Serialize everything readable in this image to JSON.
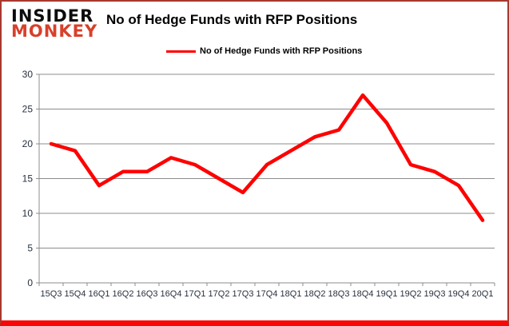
{
  "logo": {
    "line1": "INSIDER",
    "line2": "MONKEY"
  },
  "header": {
    "title": "No of Hedge Funds with RFP Positions"
  },
  "legend": {
    "label": "No of Hedge Funds with RFP Positions"
  },
  "colors": {
    "line": "#fe0000",
    "grid": "#8c8c8c",
    "axis": "#8c8c8c",
    "tick_text": "#27303f",
    "logo_red": "#d8402a",
    "frame_border": "#a8382e",
    "frame_bottom": "#f90606"
  },
  "chart_data": {
    "type": "line",
    "title": "No of Hedge Funds with RFP Positions",
    "series_name": "No of Hedge Funds with RFP Positions",
    "categories": [
      "15Q3",
      "15Q4",
      "16Q1",
      "16Q2",
      "16Q3",
      "16Q4",
      "17Q1",
      "17Q2",
      "17Q3",
      "17Q4",
      "18Q1",
      "18Q2",
      "18Q3",
      "18Q4",
      "19Q1",
      "19Q2",
      "19Q3",
      "19Q4",
      "20Q1"
    ],
    "values": [
      20,
      19,
      14,
      16,
      16,
      18,
      17,
      15,
      13,
      17,
      19,
      21,
      22,
      27,
      23,
      17,
      16,
      14,
      9
    ],
    "ylim": [
      0,
      30
    ],
    "yticks": [
      0,
      5,
      10,
      15,
      20,
      25,
      30
    ],
    "grid": true,
    "legend_position": "top-center",
    "line_color": "#fe0000"
  }
}
